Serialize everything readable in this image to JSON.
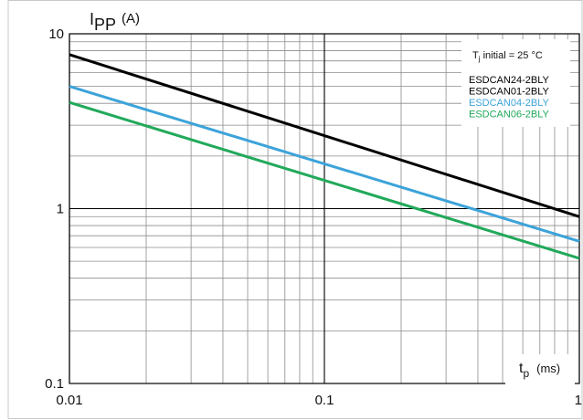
{
  "chart_data": {
    "type": "line",
    "x_scale": "log",
    "y_scale": "log",
    "xlim": [
      0.01,
      1
    ],
    "ylim": [
      0.1,
      10
    ],
    "x_ticks": [
      {
        "value": 0.01,
        "label": "0.01"
      },
      {
        "value": 0.1,
        "label": "0.1"
      },
      {
        "value": 1,
        "label": "1"
      }
    ],
    "y_ticks": [
      {
        "value": 0.1,
        "label": "0.1"
      },
      {
        "value": 1,
        "label": "1"
      },
      {
        "value": 10,
        "label": "10"
      }
    ],
    "grid": true,
    "ylabel": {
      "main": "I",
      "sub": "PP",
      "unit": "(A)"
    },
    "xlabel": {
      "main": "t",
      "sub": "p",
      "unit": "(ms)"
    },
    "legend_position": "top-right",
    "annotation": {
      "main": "T",
      "sub": "j",
      "rest": " initial = 25 °C"
    },
    "legend": [
      {
        "name": "ESDCAN24-2BLY",
        "color": "#000000"
      },
      {
        "name": "ESDCAN01-2BLY",
        "color": "#000000"
      },
      {
        "name": "ESDCAN04-2BLY",
        "color": "#3ca3d9"
      },
      {
        "name": "ESDCAN06-2BLY",
        "color": "#21a95a"
      }
    ],
    "series": [
      {
        "name": "ESDCAN24-2BLY",
        "color": "#000000",
        "x": [
          0.01,
          1
        ],
        "y": [
          7.6,
          0.9
        ]
      },
      {
        "name": "ESDCAN04-2BLY",
        "color": "#3ca3d9",
        "x": [
          0.01,
          1
        ],
        "y": [
          5.0,
          0.65
        ]
      },
      {
        "name": "ESDCAN06-2BLY",
        "color": "#21a95a",
        "x": [
          0.01,
          1
        ],
        "y": [
          4.05,
          0.52
        ]
      }
    ]
  }
}
